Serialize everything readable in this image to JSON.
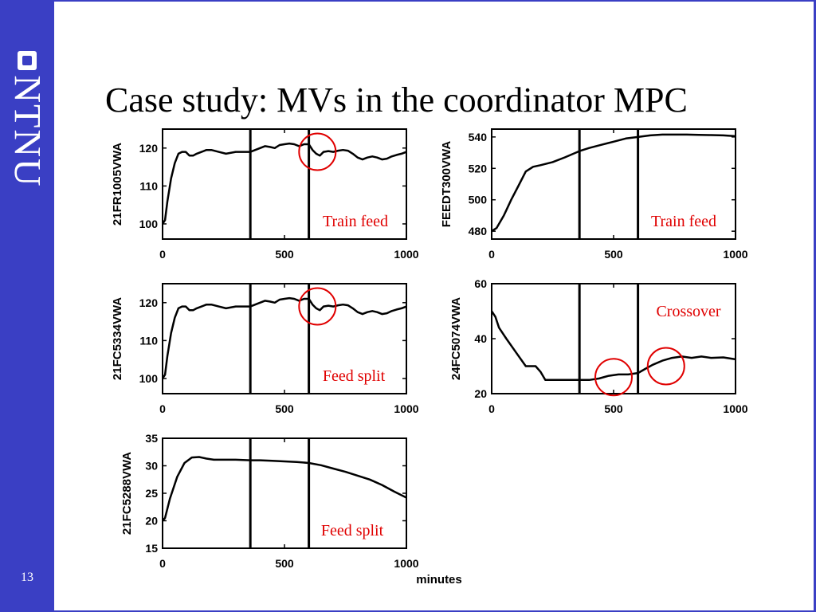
{
  "slide": {
    "title": "Case study: MVs in the coordinator MPC",
    "brand": "NTNU",
    "page_number": "13",
    "x_unit": "minutes",
    "colors": {
      "sidebar": "#3a3fc4",
      "annotation": "#e00000",
      "line": "#000000"
    }
  },
  "chart_data": [
    {
      "type": "line",
      "ylabel": "21FR1005VWA",
      "xlim": [
        0,
        1000
      ],
      "ylim": [
        96,
        125
      ],
      "xticks": [
        0,
        500,
        1000
      ],
      "yticks": [
        100,
        110,
        120
      ],
      "vlines": [
        360,
        600
      ],
      "annotation": "Train feed",
      "circles": [
        {
          "x": 635,
          "y": 119
        }
      ],
      "series": [
        {
          "x": [
            0,
            10,
            20,
            35,
            50,
            65,
            80,
            95,
            110,
            125,
            140,
            160,
            180,
            200,
            230,
            260,
            300,
            340,
            360,
            380,
            400,
            420,
            440,
            460,
            480,
            500,
            520,
            540,
            560,
            580,
            600,
            615,
            630,
            645,
            660,
            680,
            700,
            720,
            740,
            760,
            780,
            800,
            820,
            840,
            860,
            880,
            900,
            920,
            940,
            960,
            980,
            1000
          ],
          "y": [
            100,
            101,
            106,
            112,
            116,
            118.5,
            119,
            119,
            118,
            118,
            118.5,
            119,
            119.5,
            119.5,
            119,
            118.5,
            119,
            119,
            119,
            119.5,
            120,
            120.5,
            120.3,
            120,
            120.8,
            121,
            121.2,
            121,
            120.5,
            121,
            121,
            119.5,
            118.5,
            118,
            119,
            119.2,
            119,
            119.3,
            119.5,
            119.3,
            118.5,
            117.5,
            117,
            117.5,
            117.8,
            117.5,
            117,
            117.2,
            117.8,
            118.2,
            118.5,
            119
          ]
        }
      ]
    },
    {
      "type": "line",
      "ylabel": "FEEDT300VWA",
      "xlim": [
        0,
        1000
      ],
      "ylim": [
        475,
        545
      ],
      "xticks": [
        0,
        500,
        1000
      ],
      "yticks": [
        480,
        500,
        520,
        540
      ],
      "vlines": [
        360,
        600
      ],
      "annotation": "Train feed",
      "circles": [],
      "series": [
        {
          "x": [
            0,
            20,
            50,
            80,
            110,
            140,
            170,
            200,
            250,
            300,
            360,
            400,
            450,
            500,
            550,
            600,
            650,
            700,
            750,
            800,
            850,
            900,
            950,
            1000
          ],
          "y": [
            480,
            482,
            490,
            500,
            509,
            518,
            521,
            522,
            524,
            527,
            531,
            533,
            535,
            537,
            539,
            540,
            541,
            541.5,
            541.5,
            541.5,
            541.3,
            541.2,
            541,
            540.5
          ]
        }
      ]
    },
    {
      "type": "line",
      "ylabel": "21FC5334VWA",
      "xlim": [
        0,
        1000
      ],
      "ylim": [
        96,
        125
      ],
      "xticks": [
        0,
        500,
        1000
      ],
      "yticks": [
        100,
        110,
        120
      ],
      "vlines": [
        360,
        600
      ],
      "annotation": "Feed split",
      "circles": [
        {
          "x": 635,
          "y": 119
        }
      ],
      "series": [
        {
          "x": [
            0,
            10,
            20,
            35,
            50,
            65,
            80,
            95,
            110,
            125,
            140,
            160,
            180,
            200,
            230,
            260,
            300,
            340,
            360,
            380,
            400,
            420,
            440,
            460,
            480,
            500,
            520,
            540,
            560,
            580,
            600,
            615,
            630,
            645,
            660,
            680,
            700,
            720,
            740,
            760,
            780,
            800,
            820,
            840,
            860,
            880,
            900,
            920,
            940,
            960,
            980,
            1000
          ],
          "y": [
            100,
            101,
            106,
            112,
            116,
            118.5,
            119,
            119,
            118,
            118,
            118.5,
            119,
            119.5,
            119.5,
            119,
            118.5,
            119,
            119,
            119,
            119.5,
            120,
            120.5,
            120.3,
            120,
            120.8,
            121,
            121.2,
            121,
            120.5,
            121,
            121,
            119.5,
            118.5,
            118,
            119,
            119.2,
            119,
            119.3,
            119.5,
            119.3,
            118.5,
            117.5,
            117,
            117.5,
            117.8,
            117.5,
            117,
            117.2,
            117.8,
            118.2,
            118.5,
            119
          ]
        }
      ]
    },
    {
      "type": "line",
      "ylabel": "24FC5074VWA",
      "xlim": [
        0,
        1000
      ],
      "ylim": [
        20,
        60
      ],
      "xticks": [
        0,
        500,
        1000
      ],
      "yticks": [
        20,
        40,
        60
      ],
      "vlines": [
        360,
        600
      ],
      "annotation": "Crossover",
      "circles": [
        {
          "x": 500,
          "y": 26
        },
        {
          "x": 715,
          "y": 30
        }
      ],
      "series": [
        {
          "x": [
            0,
            15,
            30,
            60,
            100,
            140,
            160,
            180,
            200,
            220,
            240,
            300,
            360,
            400,
            440,
            480,
            520,
            560,
            600,
            630,
            660,
            700,
            740,
            780,
            820,
            860,
            900,
            950,
            1000
          ],
          "y": [
            50,
            48,
            44,
            40,
            35,
            30,
            30,
            30,
            28,
            25,
            25,
            25,
            25,
            25,
            25.5,
            26.5,
            27,
            27,
            27.5,
            29,
            30.5,
            32,
            33,
            33.5,
            33,
            33.5,
            33,
            33.2,
            32.5
          ]
        }
      ]
    },
    {
      "type": "line",
      "ylabel": "21FC5288VWA",
      "xlim": [
        0,
        1000
      ],
      "ylim": [
        15,
        35
      ],
      "xticks": [
        0,
        500,
        1000
      ],
      "yticks": [
        15,
        20,
        25,
        30,
        35
      ],
      "vlines": [
        360,
        600
      ],
      "annotation": "Feed split",
      "circles": [],
      "series": [
        {
          "x": [
            0,
            10,
            30,
            60,
            90,
            120,
            150,
            180,
            210,
            250,
            300,
            360,
            400,
            450,
            500,
            550,
            600,
            650,
            700,
            750,
            800,
            850,
            900,
            950,
            1000
          ],
          "y": [
            20,
            20.5,
            24,
            28,
            30.5,
            31.5,
            31.6,
            31.3,
            31.1,
            31.1,
            31.1,
            31,
            31,
            30.9,
            30.8,
            30.7,
            30.5,
            30.1,
            29.5,
            28.9,
            28.2,
            27.5,
            26.5,
            25.3,
            24.2
          ]
        }
      ]
    }
  ]
}
